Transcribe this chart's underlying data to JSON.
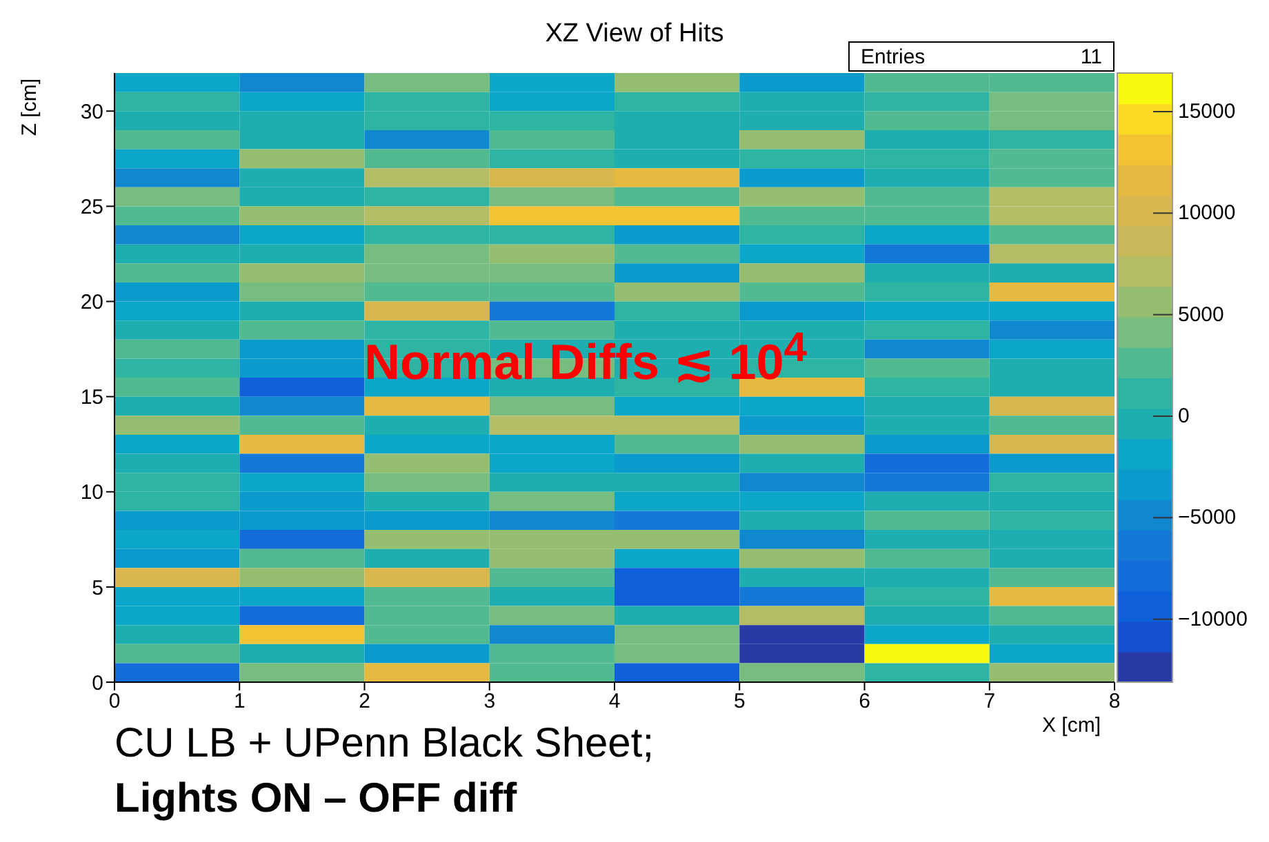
{
  "chart_data": {
    "type": "heatmap",
    "title": "XZ View of Hits",
    "xlabel": "X [cm]",
    "ylabel": "Z [cm]",
    "xlim": [
      0,
      8
    ],
    "xticks": [
      0,
      1,
      2,
      3,
      4,
      5,
      6,
      7,
      8
    ],
    "ylim": [
      0,
      32
    ],
    "yticks": [
      0,
      5,
      10,
      15,
      20,
      25,
      30
    ],
    "clim": [
      -13100,
      16900
    ],
    "cticks": [
      -10000,
      -5000,
      0,
      5000,
      10000,
      15000
    ],
    "annotations": [
      "Entries",
      "11",
      "Normal Diffs ≲ 10$^{4}$",
      "CU LB + UPenn Black Sheet;",
      "Lights ON – OFF diff"
    ],
    "cells": [
      [
        -2500,
        -5000,
        4200,
        -2000,
        5700,
        -3500,
        2700,
        2700
      ],
      [
        1200,
        -2000,
        1200,
        -2000,
        1200,
        -300,
        1200,
        4200
      ],
      [
        -300,
        -300,
        1200,
        1200,
        -300,
        -300,
        2700,
        4200
      ],
      [
        2700,
        -300,
        -5500,
        2700,
        -300,
        5700,
        -300,
        1200
      ],
      [
        -2000,
        5700,
        2700,
        1200,
        -300,
        1200,
        1200,
        2700
      ],
      [
        -5500,
        -300,
        7200,
        9500,
        11700,
        -3500,
        -300,
        2700
      ],
      [
        4200,
        -300,
        1200,
        4200,
        2700,
        5700,
        2700,
        7200
      ],
      [
        2700,
        5700,
        7200,
        13500,
        13500,
        2700,
        2700,
        7200
      ],
      [
        -5500,
        -2500,
        1200,
        1200,
        -3500,
        1200,
        -2000,
        2700
      ],
      [
        -300,
        -300,
        4200,
        5700,
        2700,
        -2000,
        -6500,
        7200
      ],
      [
        2700,
        5700,
        4200,
        4200,
        -3500,
        5700,
        -300,
        -300
      ],
      [
        -3500,
        4200,
        2700,
        2700,
        5700,
        2700,
        1200,
        11700
      ],
      [
        -2000,
        -300,
        10000,
        -6500,
        1200,
        -3500,
        -2000,
        -2000
      ],
      [
        -300,
        2700,
        1200,
        2700,
        -300,
        -300,
        1200,
        -5500
      ],
      [
        2700,
        -3500,
        1200,
        -300,
        -300,
        -300,
        -5500,
        -2000
      ],
      [
        1200,
        -3500,
        1200,
        4200,
        -300,
        1200,
        2700,
        -300
      ],
      [
        2700,
        -9300,
        -2000,
        -300,
        1200,
        11700,
        1200,
        -300
      ],
      [
        -300,
        -5500,
        11700,
        4200,
        -2000,
        -2000,
        -300,
        10000
      ],
      [
        5700,
        2700,
        -300,
        7200,
        7200,
        -3500,
        -300,
        2700
      ],
      [
        -2000,
        11700,
        -2000,
        -2000,
        2700,
        5700,
        -3500,
        10000
      ],
      [
        -300,
        -6500,
        5700,
        -2000,
        -3500,
        -300,
        -7800,
        -3500
      ],
      [
        1200,
        -2500,
        4200,
        -300,
        -300,
        -5500,
        -6500,
        1200
      ],
      [
        1200,
        -3500,
        -300,
        4200,
        -2000,
        -2000,
        -300,
        -300
      ],
      [
        -3500,
        -3500,
        -3500,
        -5500,
        -6500,
        -300,
        2700,
        1200
      ],
      [
        -2000,
        -7800,
        5700,
        5700,
        5700,
        -5500,
        -300,
        -300
      ],
      [
        -3500,
        2700,
        -300,
        5700,
        -2000,
        5700,
        2700,
        -300
      ],
      [
        10000,
        5700,
        10000,
        2700,
        -9300,
        -300,
        -300,
        2700
      ],
      [
        -2000,
        -2000,
        2700,
        -300,
        -10000,
        -6500,
        1200,
        11700
      ],
      [
        -2000,
        -7800,
        2700,
        4200,
        -300,
        7200,
        -300,
        2700
      ],
      [
        -300,
        13500,
        2700,
        -5500,
        4200,
        -13100,
        -2000,
        -300
      ],
      [
        2700,
        -300,
        -3500,
        2700,
        4200,
        -13100,
        16900,
        -2000
      ],
      [
        -8000,
        4200,
        11700,
        2700,
        -9300,
        4200,
        1200,
        5700
      ]
    ]
  }
}
